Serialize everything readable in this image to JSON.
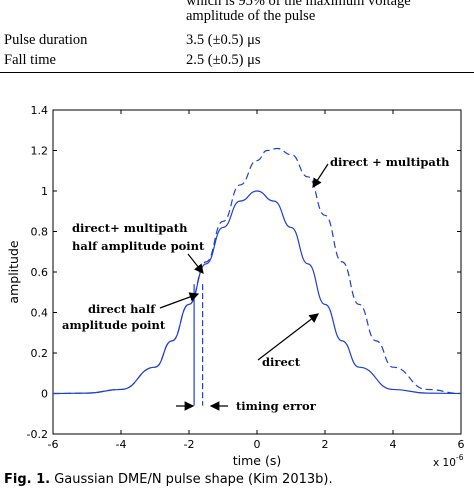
{
  "table": {
    "top_fragment_line1": "which is 95% of the maximum voltage",
    "top_fragment_line2": "amplitude of the pulse",
    "rows": [
      {
        "label": "Pulse duration",
        "value": "3.5 (±0.5) μs"
      },
      {
        "label": "Fall time",
        "value": "2.5 (±0.5) μs"
      }
    ]
  },
  "chart_data": {
    "type": "line",
    "xlabel": "time (s)",
    "ylabel": "amplitude",
    "x_exponent_label": "x 10",
    "x_exponent_power": "-6",
    "xlim": [
      -6,
      6
    ],
    "ylim": [
      -0.2,
      1.4
    ],
    "xticks": [
      "-6",
      "-4",
      "-2",
      "0",
      "2",
      "4",
      "6"
    ],
    "yticks": [
      "-0.2",
      "0",
      "0.2",
      "0.4",
      "0.6",
      "0.8",
      "1",
      "1.2",
      "1.4"
    ],
    "series": [
      {
        "label": "direct",
        "style": "solid",
        "color": "#1f3fd6",
        "x": [
          -6,
          -5,
          -4,
          -3,
          -2.5,
          -2,
          -1.5,
          -1,
          -0.5,
          0,
          0.5,
          1,
          1.5,
          2,
          2.5,
          3,
          4,
          5,
          6
        ],
        "y": [
          0.0,
          0.002,
          0.02,
          0.13,
          0.26,
          0.44,
          0.64,
          0.82,
          0.95,
          1.0,
          0.95,
          0.82,
          0.64,
          0.44,
          0.26,
          0.13,
          0.02,
          0.002,
          0.0
        ]
      },
      {
        "label": "direct + multipath",
        "style": "dashed",
        "color": "#1f3fd6",
        "x": [
          -6,
          -5,
          -4,
          -3,
          -2.5,
          -2,
          -1.5,
          -1,
          -0.5,
          0,
          0.3,
          0.6,
          1,
          1.5,
          2,
          2.5,
          3,
          3.5,
          4,
          5,
          6
        ],
        "y": [
          0.0,
          0.002,
          0.02,
          0.13,
          0.26,
          0.44,
          0.65,
          0.85,
          1.03,
          1.15,
          1.2,
          1.21,
          1.18,
          1.07,
          0.88,
          0.65,
          0.44,
          0.26,
          0.13,
          0.02,
          0.0
        ]
      }
    ],
    "markers": [
      {
        "x": -1.85,
        "label": "direct half amplitude point"
      },
      {
        "x": -1.6,
        "label": "direct+ multipath half amplitude point"
      }
    ],
    "annotations": {
      "multipath_label": "direct + multipath",
      "direct_label": "direct",
      "multipath_half_1": "direct+ multipath",
      "multipath_half_2": "half amplitude point",
      "direct_half_1": "direct half",
      "direct_half_2": "amplitude point",
      "timing_error": "timing error"
    }
  },
  "caption": {
    "prefix": "Fig. 1.",
    "text": "Gaussian DME/N pulse shape (Kim 2013b)."
  }
}
